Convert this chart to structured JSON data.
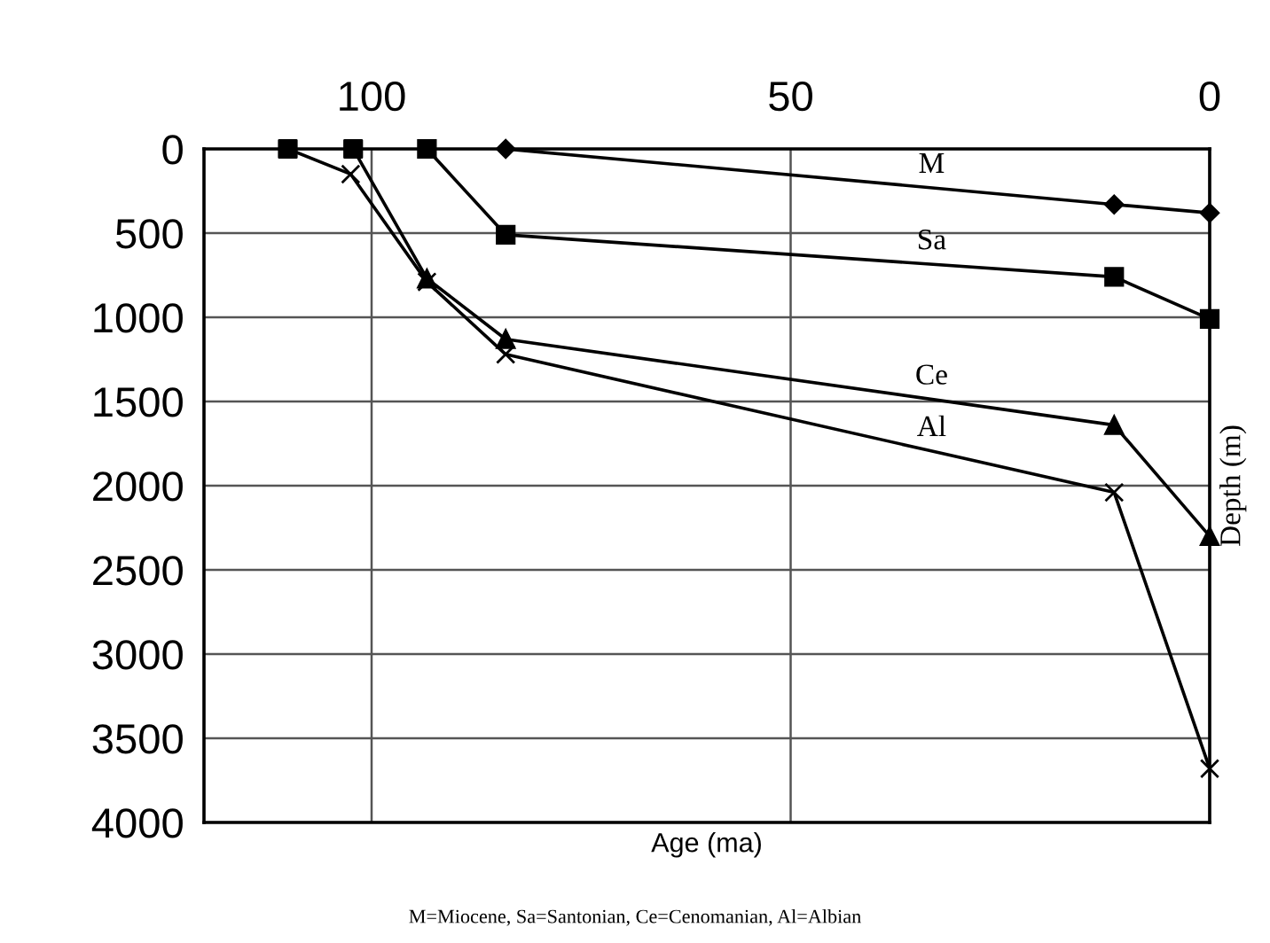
{
  "chart_data": {
    "type": "line",
    "xlabel": "Age (ma)",
    "ylabel": "Depth (m)",
    "xlim": [
      120,
      0
    ],
    "xticks": [
      100,
      50,
      0
    ],
    "ylim": [
      4000,
      0
    ],
    "yticks": [
      0,
      500,
      1000,
      1500,
      2000,
      2500,
      3000,
      3500,
      4000
    ],
    "grid": true,
    "legend": false,
    "line_style": "solid",
    "series": [
      {
        "name": "M",
        "color": "#000000",
        "marker": "diamond",
        "x": [
          84,
          11.4,
          0
        ],
        "values": [
          0,
          330,
          380
        ]
      },
      {
        "name": "Sa",
        "color": "#000000",
        "marker": "square",
        "x": [
          93.4,
          84,
          11.4,
          0
        ],
        "values": [
          0,
          510,
          760,
          1010
        ]
      },
      {
        "name": "Ce",
        "color": "#000000",
        "marker": "triangle",
        "x": [
          93.4,
          84,
          11.4,
          0
        ],
        "values": [
          770,
          1130,
          1640,
          2300
        ]
      },
      {
        "name": "Al",
        "color": "#000000",
        "marker": "cross",
        "x": [
          102.5,
          93.4,
          84,
          11.4,
          0
        ],
        "values": [
          150,
          790,
          1220,
          2040,
          3680
        ]
      },
      {
        "color": "#000000",
        "marker": "none",
        "x": [
          102.2,
          93.4
        ],
        "values": [
          0,
          770
        ]
      },
      {
        "color": "#000000",
        "marker": "none",
        "x": [
          110,
          102.5
        ],
        "values": [
          0,
          150
        ]
      },
      {
        "type": "scatter",
        "color": "#000000",
        "marker": "square",
        "x": [
          110,
          102.2
        ],
        "values": [
          0,
          0
        ]
      }
    ],
    "annotations": [
      "M=Miocene, Sa=Santonian, Ce=Cenomanian, Al=Albian"
    ]
  }
}
